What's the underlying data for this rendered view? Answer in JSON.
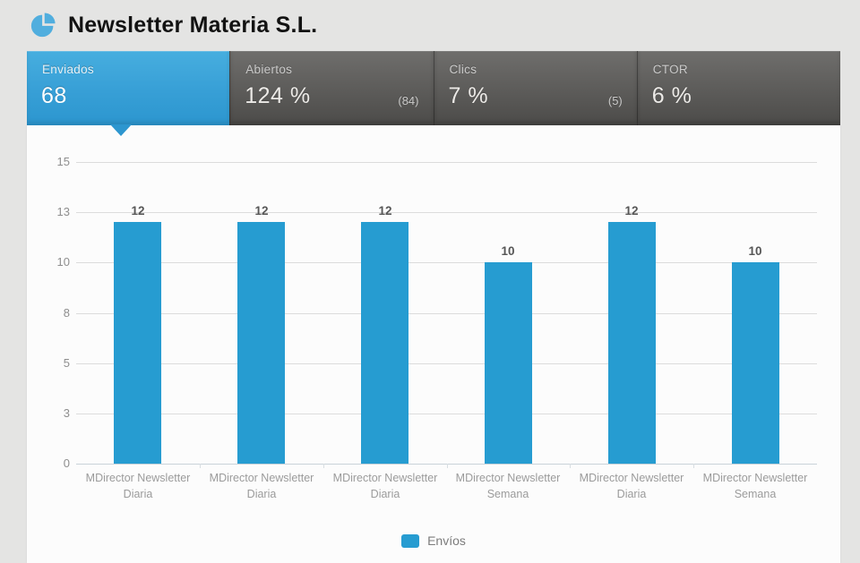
{
  "header": {
    "title": "Newsletter Materia S.L.",
    "icon": "pie-chart-icon"
  },
  "colors": {
    "accent_blue": "#2f9fd6",
    "bar_blue": "#269cd1",
    "tab_dark": "#5c5b59",
    "page_background": "#e4e4e3",
    "panel_background": "#fcfcfc"
  },
  "tabs": [
    {
      "id": "enviados",
      "label": "Enviados",
      "value": "68",
      "sub": "",
      "active": true
    },
    {
      "id": "abiertos",
      "label": "Abiertos",
      "value": "124 %",
      "sub": "(84)",
      "active": false
    },
    {
      "id": "clics",
      "label": "Clics",
      "value": "7 %",
      "sub": "(5)",
      "active": false
    },
    {
      "id": "ctor",
      "label": "CTOR",
      "value": "6 %",
      "sub": "",
      "active": false
    }
  ],
  "chart_data": {
    "type": "bar",
    "title": "",
    "categories": [
      "MDirector Newsletter Diaria",
      "MDirector Newsletter Diaria",
      "MDirector Newsletter Diaria",
      "MDirector Newsletter Semana",
      "MDirector Newsletter Diaria",
      "MDirector Newsletter Semana"
    ],
    "values": [
      12,
      12,
      12,
      10,
      12,
      10
    ],
    "series_name": "Envíos",
    "bar_color": "#269cd1",
    "ylim": [
      0,
      15
    ],
    "y_ticks": [
      {
        "label": "0",
        "value": 0
      },
      {
        "label": "3",
        "value": 2.5
      },
      {
        "label": "5",
        "value": 5
      },
      {
        "label": "8",
        "value": 7.5
      },
      {
        "label": "10",
        "value": 10
      },
      {
        "label": "13",
        "value": 12.5
      },
      {
        "label": "15",
        "value": 15
      }
    ],
    "grid": true,
    "legend_position": "bottom"
  },
  "legend": {
    "label": "Envíos"
  }
}
